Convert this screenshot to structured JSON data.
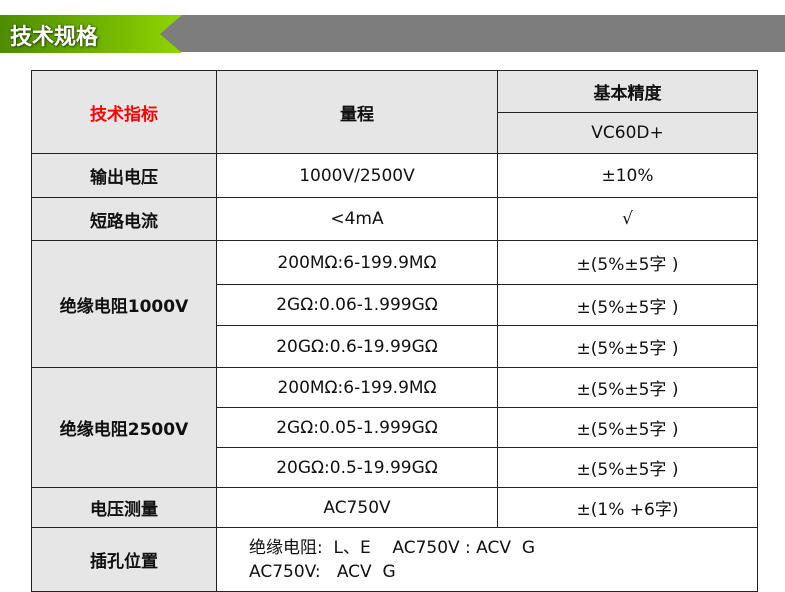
{
  "banner": {
    "title": "技术规格"
  },
  "header": {
    "col1": "技术指标",
    "col2": "量程",
    "col3": "基本精度",
    "model": "VC60D+"
  },
  "rows": [
    {
      "label": "输出电压",
      "range": "1000V/2500V",
      "accuracy": "±10%"
    },
    {
      "label": "短路电流",
      "range": "<4mA",
      "accuracy": "√"
    }
  ],
  "ir1000": {
    "label": "绝缘电阻1000V",
    "items": [
      {
        "range": "200MΩ:6-199.9MΩ",
        "accuracy": "±(5%±5字 )"
      },
      {
        "range": "2GΩ:0.06-1.999GΩ",
        "accuracy": "±(5%±5字 )"
      },
      {
        "range": "20GΩ:0.6-19.99GΩ",
        "accuracy": "±(5%±5字 )"
      }
    ]
  },
  "ir2500": {
    "label": "绝缘电阻2500V",
    "items": [
      {
        "range": "200MΩ:6-199.9MΩ",
        "accuracy": "±(5%±5字 )"
      },
      {
        "range": "2GΩ:0.05-1.999GΩ",
        "accuracy": "±(5%±5字 )"
      },
      {
        "range": "20GΩ:0.5-19.99GΩ",
        "accuracy": "±(5%±5字 )"
      }
    ]
  },
  "voltage": {
    "label": "电压测量",
    "range": "AC750V",
    "accuracy": "±(1% +6字)"
  },
  "jack": {
    "label": "插孔位置",
    "line1": "绝缘电阻:  L、E    AC750V : ACV  G",
    "line2": "AC750V:   ACV  G"
  }
}
